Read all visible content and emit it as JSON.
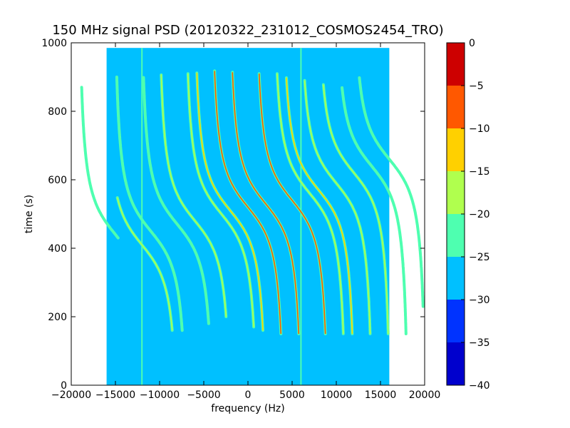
{
  "chart_data": {
    "type": "heatmap",
    "title": "150 MHz signal PSD (20120322_231012_COSMOS2454_TRO)",
    "xlabel": "frequency (Hz)",
    "ylabel": "time (s)",
    "xlim": [
      -20000,
      20000
    ],
    "ylim": [
      0,
      1000
    ],
    "xticks": [
      -20000,
      -15000,
      -10000,
      -5000,
      0,
      5000,
      10000,
      15000,
      20000
    ],
    "xtick_labels": [
      "−20000",
      "−15000",
      "−10000",
      "−5000",
      "0",
      "5000",
      "10000",
      "15000",
      "20000"
    ],
    "yticks": [
      0,
      200,
      400,
      600,
      800,
      1000
    ],
    "ytick_labels": [
      "0",
      "200",
      "400",
      "600",
      "800",
      "1000"
    ],
    "grid": false,
    "data_extent": {
      "x": [
        -16000,
        16000
      ],
      "y": [
        0,
        985
      ]
    },
    "background_level": -27.5,
    "colorbar": {
      "levels": [
        -40,
        -35,
        -30,
        -25,
        -20,
        -15,
        -10,
        -5,
        0
      ],
      "level_labels": [
        "−40",
        "−35",
        "−30",
        "−25",
        "−20",
        "−15",
        "−10",
        "−5",
        "0"
      ],
      "colors": [
        "#0000cd",
        "#0033ff",
        "#00c0ff",
        "#4effb0",
        "#b0ff4e",
        "#ffd000",
        "#ff5800",
        "#cd0000"
      ]
    },
    "vertical_lines": [
      {
        "x": -12000,
        "y_range": [
          0,
          985
        ],
        "level": -22.5
      },
      {
        "x": 6000,
        "y_range": [
          0,
          985
        ],
        "level": -22.5
      }
    ],
    "traces": [
      {
        "center_x": -12000,
        "t0": 410,
        "y_range": [
          160,
          550
        ],
        "peak_level": -17.5
      },
      {
        "center_x": -15000,
        "t0": 440,
        "y_range": [
          430,
          870
        ],
        "peak_level": -22.5
      },
      {
        "center_x": -11000,
        "t0": 450,
        "y_range": [
          160,
          900
        ],
        "peak_level": -22.5
      },
      {
        "center_x": -8000,
        "t0": 470,
        "y_range": [
          180,
          900
        ],
        "peak_level": -22.5
      },
      {
        "center_x": -6000,
        "t0": 480,
        "y_range": [
          200,
          910
        ],
        "peak_level": -17.5
      },
      {
        "center_x": -3000,
        "t0": 500,
        "y_range": [
          170,
          910
        ],
        "peak_level": -17.5
      },
      {
        "center_x": -2000,
        "t0": 510,
        "y_range": [
          160,
          915
        ],
        "peak_level": -12.5
      },
      {
        "center_x": 0,
        "t0": 520,
        "y_range": [
          150,
          920
        ],
        "peak_level": -7.5
      },
      {
        "center_x": 2000,
        "t0": 530,
        "y_range": [
          150,
          915
        ],
        "peak_level": -7.5
      },
      {
        "center_x": 5000,
        "t0": 540,
        "y_range": [
          150,
          910
        ],
        "peak_level": -7.5
      },
      {
        "center_x": 7000,
        "t0": 560,
        "y_range": [
          150,
          910
        ],
        "peak_level": -17.5
      },
      {
        "center_x": 8000,
        "t0": 570,
        "y_range": [
          150,
          900
        ],
        "peak_level": -12.5
      },
      {
        "center_x": 10000,
        "t0": 590,
        "y_range": [
          150,
          890
        ],
        "peak_level": -17.5
      },
      {
        "center_x": 12000,
        "t0": 620,
        "y_range": [
          150,
          880
        ],
        "peak_level": -17.5
      },
      {
        "center_x": 14000,
        "t0": 640,
        "y_range": [
          150,
          870
        ],
        "peak_level": -22.5
      },
      {
        "center_x": 16000,
        "t0": 660,
        "y_range": [
          230,
          900
        ],
        "peak_level": -22.5
      }
    ]
  }
}
